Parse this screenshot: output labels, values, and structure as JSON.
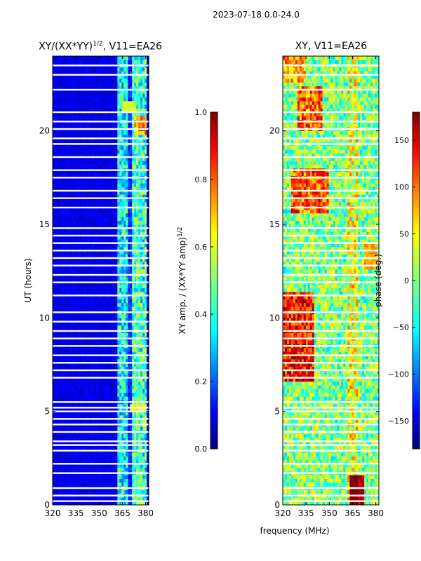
{
  "figure": {
    "suptitle": "2023-07-18 0.0-24.0",
    "shared_xlabel": "frequency (MHz)"
  },
  "chart_data": [
    {
      "type": "heatmap",
      "title": "XY/(XX*YY)^1/2, V11=EA26",
      "title_main": "XY/(XX*YY)",
      "title_exp": "1/2",
      "title_tail": ", V11=EA26",
      "xlabel": "frequency (MHz)",
      "ylabel": "UT (hours)",
      "xlim": [
        320,
        382
      ],
      "ylim": [
        0,
        24
      ],
      "xticks": [
        320,
        335,
        350,
        365,
        380
      ],
      "yticks": [
        0,
        5,
        10,
        15,
        20
      ],
      "colorbar": {
        "label": "XY amp. / (XX*YY amp)^1/2",
        "label_main": "XY amp. / (XX*YY amp)",
        "label_exp": "1/2",
        "range": [
          0.0,
          1.0
        ],
        "ticks": [
          "0.0",
          "0.2",
          "0.4",
          "0.6",
          "0.8",
          "1.0"
        ],
        "colormap": "jet"
      }
    },
    {
      "type": "heatmap",
      "title": "XY, V11=EA26",
      "xlabel": "frequency (MHz)",
      "ylabel": "",
      "xlim": [
        320,
        382
      ],
      "ylim": [
        0,
        24
      ],
      "xticks": [
        320,
        335,
        350,
        365,
        380
      ],
      "yticks": [
        0,
        5,
        10,
        15,
        20
      ],
      "colorbar": {
        "label": "phase (deg.)",
        "range": [
          -180,
          180
        ],
        "ticks": [
          "−150",
          "−100",
          "−50",
          "0",
          "50",
          "100",
          "150"
        ],
        "colormap": "jet"
      }
    }
  ],
  "colors": {
    "jet": [
      "#00007f",
      "#0000ff",
      "#007fff",
      "#00ffff",
      "#7fff7f",
      "#ffff00",
      "#ff7f00",
      "#ff0000",
      "#7f0000"
    ],
    "gap": "#ffffff",
    "axes": "#000000"
  }
}
